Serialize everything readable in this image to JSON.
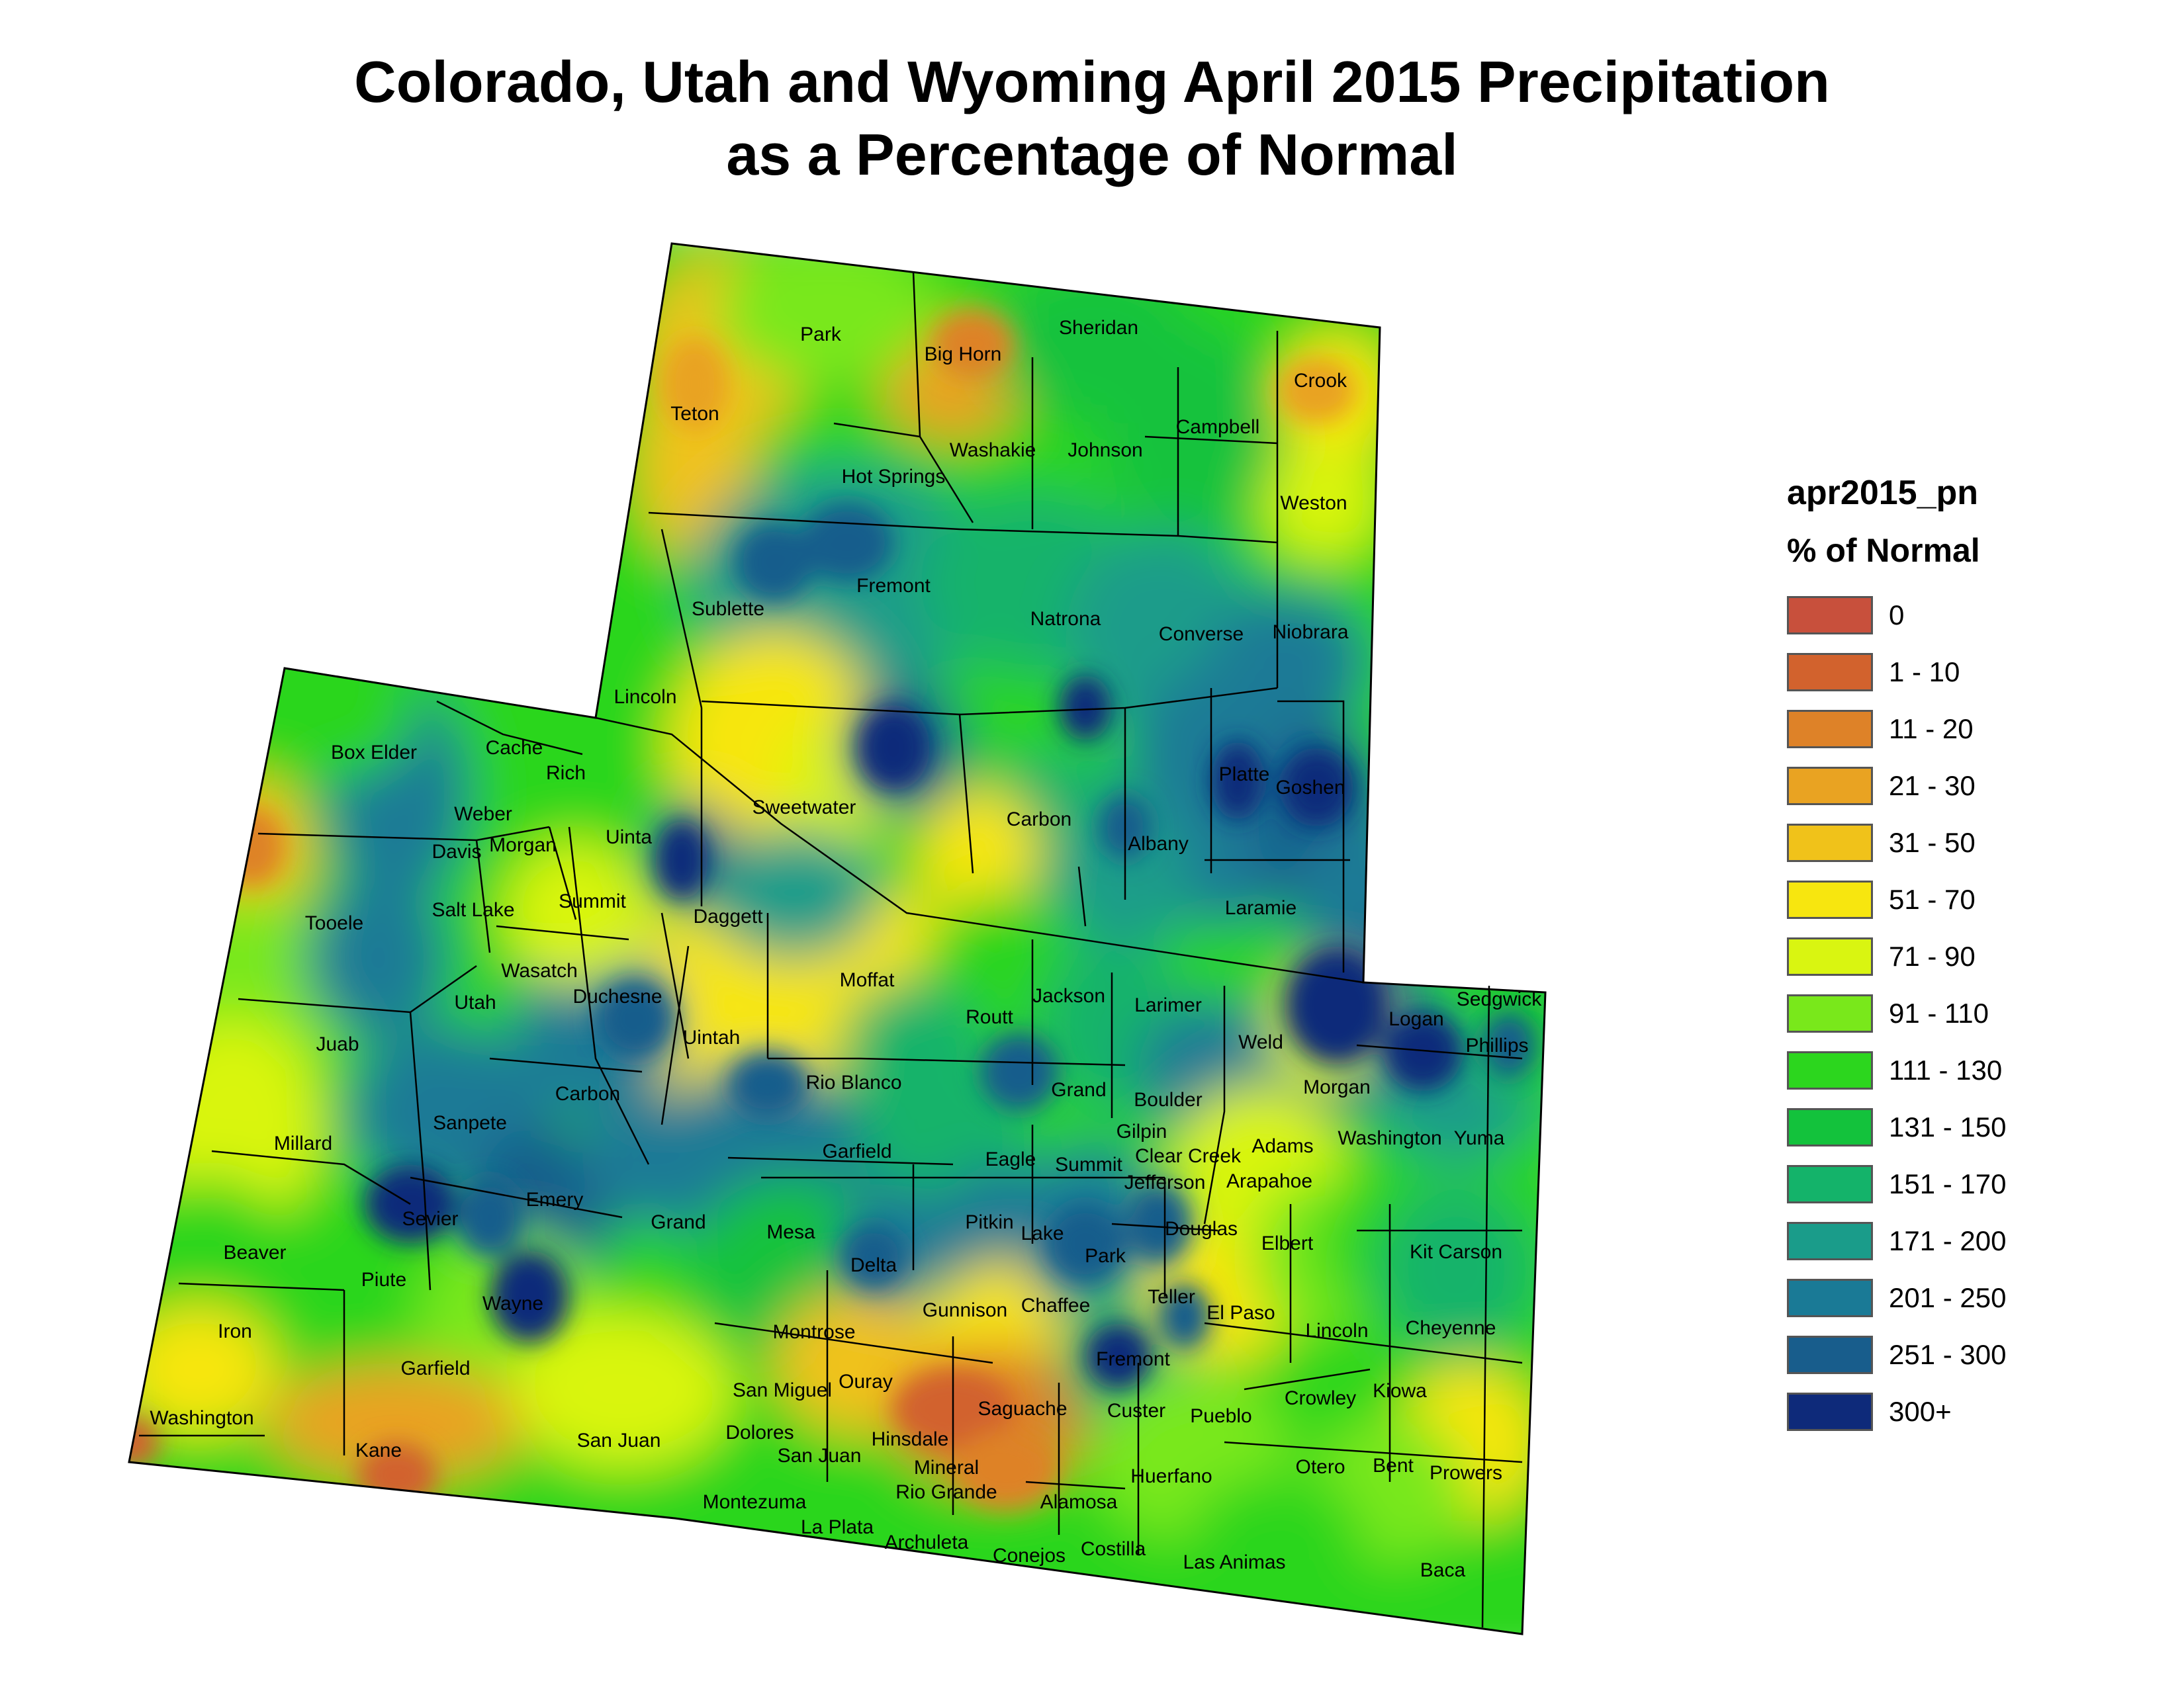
{
  "title_line1": "Colorado, Utah and Wyoming April 2015 Precipitation",
  "title_line2": "as a Percentage of Normal",
  "legend": {
    "layer_name": "apr2015_pn",
    "field_name": "% of Normal",
    "classes": [
      {
        "label": "0",
        "color": "#c8503c"
      },
      {
        "label": "1 - 10",
        "color": "#d2622d"
      },
      {
        "label": "11 - 20",
        "color": "#de8228"
      },
      {
        "label": "21 - 30",
        "color": "#e9a322"
      },
      {
        "label": "31 - 50",
        "color": "#f0c21a"
      },
      {
        "label": "51 - 70",
        "color": "#f7e60f"
      },
      {
        "label": "71 - 90",
        "color": "#d9f511"
      },
      {
        "label": "91 - 110",
        "color": "#79e81b"
      },
      {
        "label": "111 - 130",
        "color": "#2cd61e"
      },
      {
        "label": "131 - 150",
        "color": "#13c23c"
      },
      {
        "label": "151 - 170",
        "color": "#14b36a"
      },
      {
        "label": "171 - 200",
        "color": "#1a9c8a"
      },
      {
        "label": "201 - 250",
        "color": "#1a7a96"
      },
      {
        "label": "251 - 300",
        "color": "#185d8c"
      },
      {
        "label": "300+",
        "color": "#0e2a7a"
      }
    ]
  },
  "counties": {
    "wyoming": [
      "Park",
      "Big Horn",
      "Sheridan",
      "Crook",
      "Teton",
      "Washakie",
      "Johnson",
      "Campbell",
      "Hot Springs",
      "Weston",
      "Fremont",
      "Sublette",
      "Natrona",
      "Converse",
      "Niobrara",
      "Lincoln",
      "Sweetwater",
      "Carbon",
      "Platte",
      "Goshen",
      "Uinta",
      "Albany",
      "Laramie"
    ],
    "utah": [
      "Box Elder",
      "Cache",
      "Rich",
      "Weber",
      "Davis",
      "Morgan",
      "Tooele",
      "Salt Lake",
      "Summit",
      "Daggett",
      "Wasatch",
      "Duchesne",
      "Utah",
      "Uintah",
      "Juab",
      "Carbon",
      "Millard",
      "Sanpete",
      "Emery",
      "Sevier",
      "Grand",
      "Beaver",
      "Piute",
      "Wayne",
      "Iron",
      "Garfield",
      "Washington",
      "Kane",
      "San Juan"
    ],
    "colorado": [
      "Moffat",
      "Jackson",
      "Larimer",
      "Logan",
      "Sedgwick",
      "Phillips",
      "Routt",
      "Weld",
      "Rio Blanco",
      "Grand",
      "Boulder",
      "Morgan",
      "Gilpin",
      "Washington",
      "Yuma",
      "Garfield",
      "Eagle",
      "Summit",
      "Clear Creek",
      "Adams",
      "Jefferson",
      "Arapahoe",
      "Mesa",
      "Pitkin",
      "Lake",
      "Douglas",
      "Elbert",
      "Kit Carson",
      "Delta",
      "Park",
      "Gunnison",
      "Chaffee",
      "Teller",
      "El Paso",
      "Lincoln",
      "Cheyenne",
      "Montrose",
      "Fremont",
      "Ouray",
      "San Miguel",
      "Saguache",
      "Custer",
      "Crowley",
      "Kiowa",
      "Pueblo",
      "Dolores",
      "Hinsdale",
      "San Juan",
      "Mineral",
      "Huerfano",
      "Otero",
      "Bent",
      "Prowers",
      "Montezuma",
      "Rio Grande",
      "Alamosa",
      "La Plata",
      "Archuleta",
      "Conejos",
      "Costilla",
      "Las Animas",
      "Baca"
    ]
  }
}
